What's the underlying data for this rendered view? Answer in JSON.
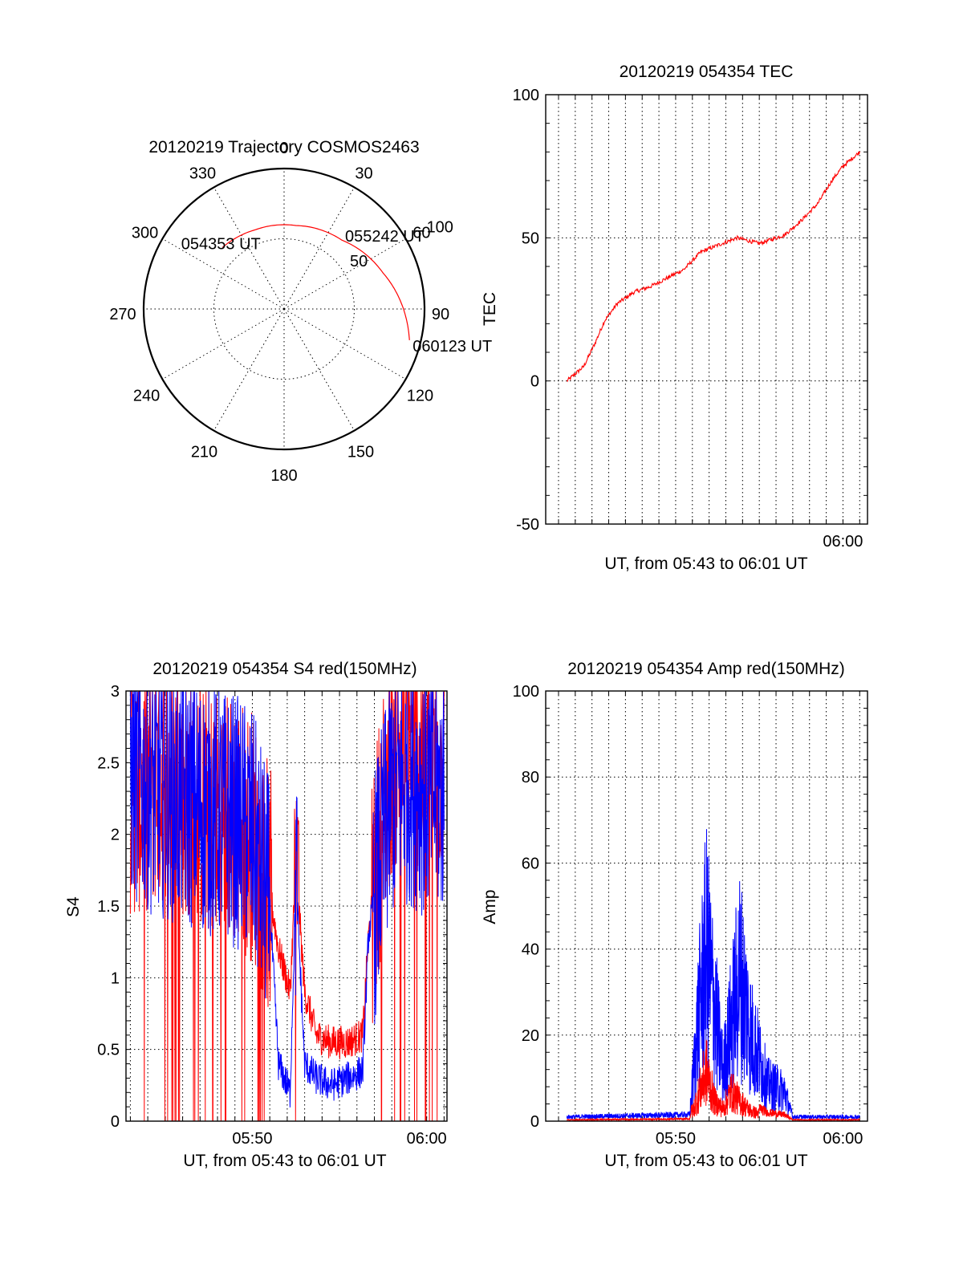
{
  "colors": {
    "red": "#ff0000",
    "blue": "#0000ff",
    "axis": "#000000"
  },
  "chart_data": [
    {
      "type": "polar",
      "title": "20120219 Trajectory COSMOS2463",
      "angle_labels": [
        "0",
        "30",
        "60",
        "90",
        "120",
        "150",
        "180",
        "210",
        "240",
        "270",
        "300",
        "330"
      ],
      "radial_labels": [
        "50",
        "100"
      ],
      "rlim": [
        0,
        100
      ],
      "grid": true,
      "series": [
        {
          "color": "red",
          "points": [
            {
              "az": -45,
              "r": 62
            },
            {
              "az": -20,
              "r": 60
            },
            {
              "az": 8,
              "r": 60
            },
            {
              "az": 40,
              "r": 64
            },
            {
              "az": 70,
              "r": 75
            },
            {
              "az": 90,
              "r": 85
            },
            {
              "az": 104,
              "r": 92
            }
          ]
        }
      ],
      "annotations": [
        {
          "text": "054353 UT",
          "az": -45,
          "r": 62
        },
        {
          "text": "055242 UT",
          "az": 40,
          "r": 64
        },
        {
          "text": "060123 UT",
          "az": 104,
          "r": 92
        }
      ]
    },
    {
      "type": "line",
      "title": "20120219 054354 TEC",
      "xlabel": "UT, from 05:43 to 06:01 UT",
      "ylabel": "TEC",
      "xlim": [
        "05:42:14",
        "06:01:28"
      ],
      "ylim": [
        -50,
        100
      ],
      "xticks": [
        "06:00"
      ],
      "yticks": [
        "-50",
        "0",
        "50",
        "100"
      ],
      "grid": true,
      "series": [
        {
          "color": "red",
          "x": [
            "05:43:30",
            "05:44:30",
            "05:45:10",
            "05:45:45",
            "05:46:30",
            "05:47:30",
            "05:48:30",
            "05:49:30",
            "05:50:30",
            "05:51:30",
            "05:52:20",
            "05:53:40",
            "05:55:00",
            "05:56:30",
            "05:57:30",
            "05:58:30",
            "05:59:20",
            "06:00:00",
            "06:01:00"
          ],
          "y": [
            0,
            5,
            13,
            21,
            27,
            31,
            33,
            36,
            39,
            45,
            47,
            50,
            48,
            51,
            56,
            62,
            70,
            75,
            80
          ]
        }
      ]
    },
    {
      "type": "line",
      "title": "20120219 054354 S4 red(150MHz)",
      "xlabel": "UT, from 05:43 to 06:01 UT",
      "ylabel": "S4",
      "xlim": [
        "05:42:45",
        "06:01:10"
      ],
      "ylim": [
        0,
        3
      ],
      "xticks": [
        "05:50",
        "06:00"
      ],
      "yticks": [
        "0",
        "0.5",
        "1",
        "1.5",
        "2",
        "2.5",
        "3"
      ],
      "grid": true,
      "series": [
        {
          "name": "",
          "color": "red",
          "x": [
            "05:43:00",
            "05:45:00",
            "05:47:00",
            "05:49:00",
            "05:50:00",
            "05:51:00",
            "05:51:30",
            "05:52:10",
            "05:52:30",
            "05:53:00",
            "05:53:40",
            "05:54:30",
            "05:55:30",
            "05:56:20",
            "05:56:40",
            "05:57:20",
            "05:58:00",
            "05:59:00",
            "06:00:00",
            "06:01:00"
          ],
          "y": [
            2.3,
            2.4,
            2.2,
            2.1,
            2.0,
            1.6,
            1.2,
            0.9,
            1.8,
            0.9,
            0.6,
            0.55,
            0.55,
            0.6,
            1.3,
            2.0,
            2.6,
            2.8,
            2.5,
            2.6
          ]
        },
        {
          "name": "",
          "color": "blue",
          "x": [
            "05:43:00",
            "05:45:00",
            "05:47:00",
            "05:49:00",
            "05:50:00",
            "05:51:00",
            "05:51:30",
            "05:52:10",
            "05:52:30",
            "05:53:00",
            "05:53:40",
            "05:54:30",
            "05:55:30",
            "05:56:20",
            "05:56:40",
            "05:57:20",
            "05:58:00",
            "05:59:00",
            "06:00:00",
            "06:01:00"
          ],
          "y": [
            2.4,
            2.3,
            2.2,
            2.1,
            2.0,
            1.5,
            0.4,
            0.2,
            1.7,
            0.4,
            0.3,
            0.25,
            0.3,
            0.35,
            1.3,
            1.8,
            2.3,
            2.4,
            2.3,
            2.3
          ]
        }
      ]
    },
    {
      "type": "line",
      "title": "20120219 054354 Amp red(150MHz)",
      "xlabel": "UT, from 05:43 to 06:01 UT",
      "ylabel": "Amp",
      "xlim": [
        "05:42:14",
        "06:01:28"
      ],
      "ylim": [
        0,
        100
      ],
      "xticks": [
        "05:50",
        "06:00"
      ],
      "yticks": [
        "0",
        "20",
        "40",
        "60",
        "80",
        "100"
      ],
      "grid": true,
      "series": [
        {
          "name": "",
          "color": "blue",
          "x": [
            "05:43:30",
            "05:50:50",
            "05:51:20",
            "05:51:50",
            "05:52:20",
            "05:52:50",
            "05:53:20",
            "05:53:50",
            "05:54:30",
            "05:55:30",
            "05:56:30",
            "05:57:00",
            "06:01:00"
          ],
          "y": [
            1,
            1.5,
            40,
            70,
            45,
            20,
            40,
            60,
            35,
            15,
            12,
            1,
            1
          ]
        },
        {
          "name": "",
          "color": "red",
          "x": [
            "05:43:30",
            "05:50:50",
            "05:51:20",
            "05:51:50",
            "05:52:20",
            "05:52:50",
            "05:53:20",
            "05:53:50",
            "05:54:30",
            "05:55:30",
            "05:56:30",
            "05:57:00",
            "06:01:00"
          ],
          "y": [
            0.3,
            0.5,
            10,
            20,
            8,
            5,
            12,
            8,
            4,
            2,
            1.5,
            0.3,
            0.3
          ]
        }
      ]
    }
  ]
}
